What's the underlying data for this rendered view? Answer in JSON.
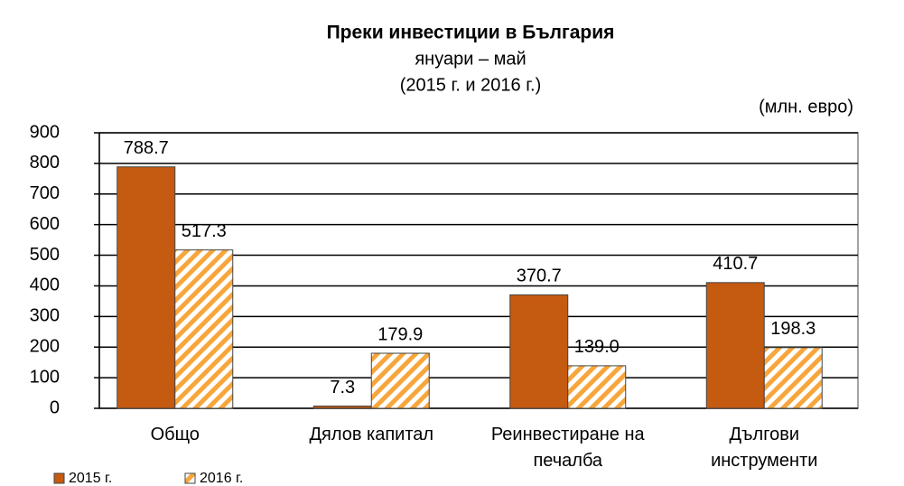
{
  "chart_data": {
    "type": "bar",
    "title": "Преки инвестиции в България",
    "subtitle": "януари – май",
    "period": "(2015 г. и 2016 г.)",
    "unit": "(млн. евро)",
    "categories": [
      "Общо",
      "Дялов капитал",
      "Реинвестиране на печалба",
      "Дългови инструменти"
    ],
    "series": [
      {
        "name": "2015 г.",
        "color": "#c55a11",
        "values": [
          788.7,
          7.3,
          370.7,
          410.7
        ],
        "value_labels": [
          "788.7",
          "7.3",
          "370.7",
          "410.7"
        ]
      },
      {
        "name": "2016 г.",
        "color": "#f7a63c",
        "hatch": true,
        "values": [
          517.3,
          179.9,
          139.0,
          198.3
        ],
        "value_labels": [
          "517.3",
          "179.9",
          "139.0",
          "198.3"
        ]
      }
    ],
    "ylim": [
      0,
      900
    ],
    "yticks": [
      0,
      100,
      200,
      300,
      400,
      500,
      600,
      700,
      800,
      900
    ],
    "grid": true
  }
}
